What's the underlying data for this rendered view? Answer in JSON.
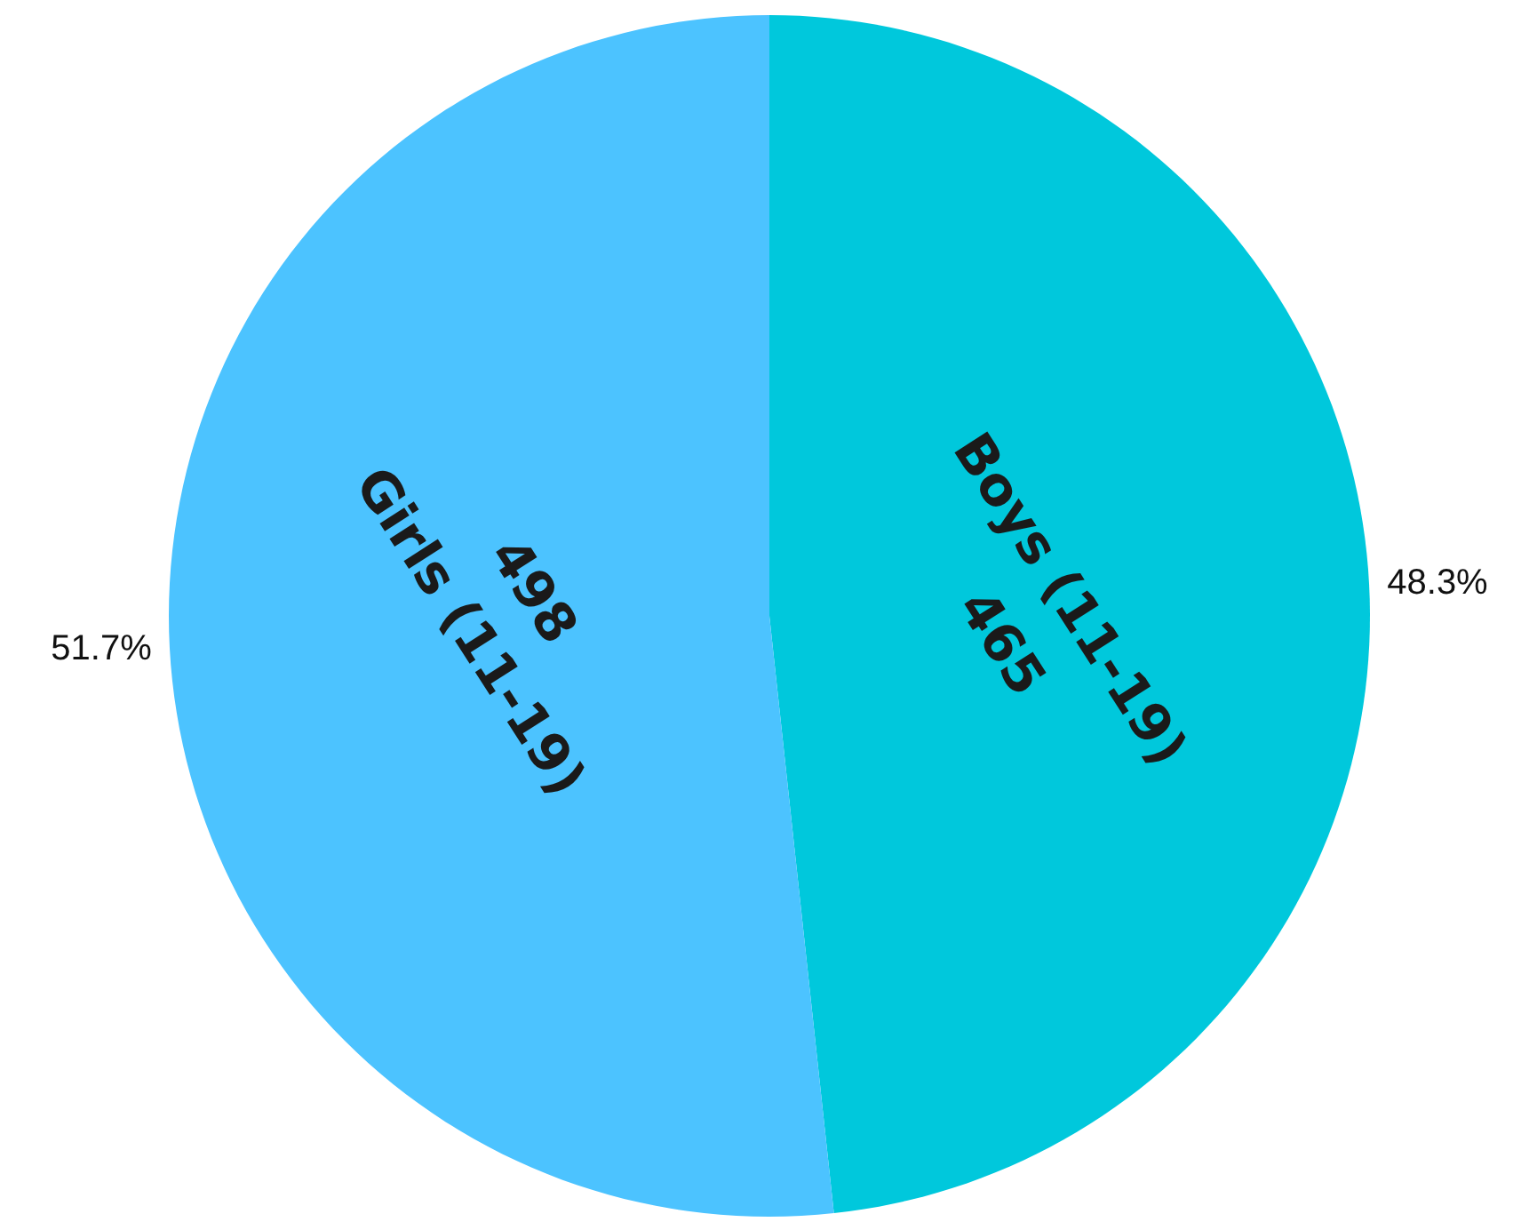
{
  "chart_data": {
    "type": "pie",
    "categories": [
      "Boys (11-19)",
      "Girls (11-19)"
    ],
    "values": [
      465,
      498
    ],
    "colors": [
      "#00c8dc",
      "#4cc3ff"
    ],
    "data_labels": true,
    "annotations": [
      "48.3%",
      "51.7%"
    ]
  }
}
